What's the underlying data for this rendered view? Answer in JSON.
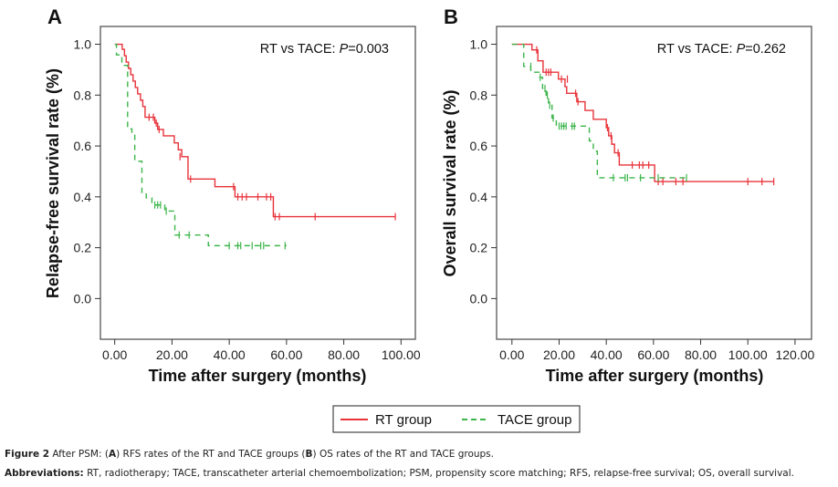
{
  "chart_data": [
    {
      "type": "line",
      "subtype": "kaplan-meier",
      "panel": "A",
      "title": "",
      "annotation": {
        "prefix": "RT vs TACE: ",
        "p_label": "P",
        "p_value": "=0.003"
      },
      "xlabel": "Time after surgery (months)",
      "ylabel": "Relapse-free survival rate (%)",
      "xlim": [
        -5,
        105
      ],
      "ylim": [
        -0.16,
        1.07
      ],
      "xticks": [
        0,
        20,
        40,
        60,
        80,
        100
      ],
      "xtick_labels": [
        "0.00",
        "20.00",
        "40.00",
        "60.00",
        "80.00",
        "100.00"
      ],
      "yticks": [
        0,
        0.2,
        0.4,
        0.6,
        0.8,
        1.0
      ],
      "ytick_labels": [
        "0.0",
        "0.2",
        "0.4",
        "0.6",
        "0.8",
        "1.0"
      ],
      "grid": false,
      "series": [
        {
          "name": "RT group",
          "color": "#e8333a",
          "dash": "solid",
          "steps": [
            [
              0,
              1.0
            ],
            [
              2.6,
              0.98
            ],
            [
              3.4,
              0.955
            ],
            [
              4.0,
              0.93
            ],
            [
              4.8,
              0.905
            ],
            [
              5.6,
              0.88
            ],
            [
              6.4,
              0.855
            ],
            [
              7.2,
              0.83
            ],
            [
              8.0,
              0.805
            ],
            [
              9.0,
              0.78
            ],
            [
              9.8,
              0.755
            ],
            [
              10.6,
              0.713
            ],
            [
              14.0,
              0.69
            ],
            [
              15.0,
              0.665
            ],
            [
              17.0,
              0.64
            ],
            [
              20.8,
              0.612
            ],
            [
              22.2,
              0.585
            ],
            [
              23.4,
              0.558
            ],
            [
              25.6,
              0.47
            ],
            [
              35.0,
              0.44
            ],
            [
              42.0,
              0.4
            ],
            [
              55.4,
              0.322
            ],
            [
              98.0,
              0.322
            ]
          ],
          "censored": [
            [
              12.0,
              0.713
            ],
            [
              13.5,
              0.713
            ],
            [
              14.5,
              0.69
            ],
            [
              15.5,
              0.665
            ],
            [
              22.8,
              0.558
            ],
            [
              26.5,
              0.47
            ],
            [
              41.5,
              0.44
            ],
            [
              43.0,
              0.4
            ],
            [
              44.5,
              0.4
            ],
            [
              46.0,
              0.4
            ],
            [
              50.0,
              0.4
            ],
            [
              53.0,
              0.4
            ],
            [
              54.5,
              0.4
            ],
            [
              56.0,
              0.322
            ],
            [
              57.5,
              0.322
            ],
            [
              70.0,
              0.322
            ],
            [
              98.0,
              0.322
            ]
          ]
        },
        {
          "name": "TACE group",
          "color": "#3cb54a",
          "dash": "dashed",
          "steps": [
            [
              0,
              1.0
            ],
            [
              0.6,
              0.958
            ],
            [
              2.5,
              0.917
            ],
            [
              4.5,
              0.667
            ],
            [
              6.0,
              0.646
            ],
            [
              7.0,
              0.54
            ],
            [
              9.5,
              0.417
            ],
            [
              11.0,
              0.396
            ],
            [
              13.0,
              0.368
            ],
            [
              17.5,
              0.344
            ],
            [
              21.0,
              0.25
            ],
            [
              32.7,
              0.208
            ],
            [
              60.0,
              0.208
            ]
          ],
          "censored": [
            [
              14.0,
              0.368
            ],
            [
              15.0,
              0.368
            ],
            [
              16.0,
              0.368
            ],
            [
              18.0,
              0.344
            ],
            [
              22.5,
              0.25
            ],
            [
              26.0,
              0.25
            ],
            [
              40.0,
              0.208
            ],
            [
              43.0,
              0.208
            ],
            [
              44.0,
              0.208
            ],
            [
              48.0,
              0.208
            ],
            [
              51.0,
              0.208
            ],
            [
              52.0,
              0.208
            ],
            [
              59.5,
              0.208
            ]
          ]
        }
      ]
    },
    {
      "type": "line",
      "subtype": "kaplan-meier",
      "panel": "B",
      "title": "",
      "annotation": {
        "prefix": "RT vs TACE: ",
        "p_label": "P",
        "p_value": "=0.262"
      },
      "xlabel": "Time after surgery (months)",
      "ylabel": "Overall survival rate (%)",
      "xlim": [
        -6.5,
        127
      ],
      "ylim": [
        -0.16,
        1.07
      ],
      "xticks": [
        0,
        20,
        40,
        60,
        80,
        100,
        120
      ],
      "xtick_labels": [
        "0.00",
        "20.00",
        "40.00",
        "60.00",
        "80.00",
        "100.00",
        "120.00"
      ],
      "yticks": [
        0,
        0.2,
        0.4,
        0.6,
        0.8,
        1.0
      ],
      "ytick_labels": [
        "0.0",
        "0.2",
        "0.4",
        "0.6",
        "0.8",
        "1.0"
      ],
      "grid": false,
      "series": [
        {
          "name": "RT group",
          "color": "#e8333a",
          "dash": "solid",
          "steps": [
            [
              0,
              1.0
            ],
            [
              8.5,
              0.978
            ],
            [
              11.0,
              0.935
            ],
            [
              13.2,
              0.89
            ],
            [
              19.7,
              0.863
            ],
            [
              22.5,
              0.833
            ],
            [
              23.2,
              0.807
            ],
            [
              27.5,
              0.774
            ],
            [
              31.0,
              0.74
            ],
            [
              34.5,
              0.705
            ],
            [
              40.0,
              0.672
            ],
            [
              41.0,
              0.64
            ],
            [
              42.3,
              0.607
            ],
            [
              43.5,
              0.573
            ],
            [
              45.5,
              0.525
            ],
            [
              60.5,
              0.46
            ],
            [
              111.0,
              0.46
            ]
          ],
          "censored": [
            [
              10.5,
              0.978
            ],
            [
              14.5,
              0.89
            ],
            [
              15.5,
              0.89
            ],
            [
              16.5,
              0.89
            ],
            [
              21.0,
              0.863
            ],
            [
              23.5,
              0.863
            ],
            [
              27.0,
              0.807
            ],
            [
              28.0,
              0.774
            ],
            [
              40.5,
              0.672
            ],
            [
              42.0,
              0.64
            ],
            [
              45.0,
              0.573
            ],
            [
              51.0,
              0.525
            ],
            [
              54.0,
              0.525
            ],
            [
              55.5,
              0.525
            ],
            [
              58.0,
              0.525
            ],
            [
              62.0,
              0.46
            ],
            [
              64.0,
              0.46
            ],
            [
              69.5,
              0.46
            ],
            [
              72.5,
              0.46
            ],
            [
              100.0,
              0.46
            ],
            [
              106.0,
              0.46
            ],
            [
              111.0,
              0.46
            ]
          ]
        },
        {
          "name": "TACE group",
          "color": "#3cb54a",
          "dash": "dashed",
          "steps": [
            [
              0,
              1.0
            ],
            [
              5.0,
              0.913
            ],
            [
              8.0,
              0.89
            ],
            [
              11.5,
              0.87
            ],
            [
              13.0,
              0.826
            ],
            [
              14.5,
              0.8
            ],
            [
              15.5,
              0.76
            ],
            [
              17.0,
              0.71
            ],
            [
              18.8,
              0.678
            ],
            [
              32.8,
              0.62
            ],
            [
              34.5,
              0.58
            ],
            [
              36.2,
              0.475
            ],
            [
              74.0,
              0.475
            ]
          ],
          "censored": [
            [
              8.0,
              0.913
            ],
            [
              12.0,
              0.87
            ],
            [
              14.0,
              0.826
            ],
            [
              15.0,
              0.8
            ],
            [
              16.0,
              0.76
            ],
            [
              17.5,
              0.71
            ],
            [
              20.0,
              0.678
            ],
            [
              21.0,
              0.678
            ],
            [
              22.0,
              0.678
            ],
            [
              23.0,
              0.678
            ],
            [
              25.5,
              0.678
            ],
            [
              26.5,
              0.678
            ],
            [
              43.0,
              0.475
            ],
            [
              48.0,
              0.475
            ],
            [
              49.0,
              0.475
            ],
            [
              54.5,
              0.475
            ],
            [
              62.0,
              0.475
            ],
            [
              74.0,
              0.475
            ]
          ]
        }
      ]
    }
  ],
  "legend": {
    "placement": "bottom-center",
    "items": [
      {
        "label": "RT group",
        "color": "#e8333a",
        "dash": "solid"
      },
      {
        "label": "TACE group",
        "color": "#3cb54a",
        "dash": "dashed"
      }
    ]
  },
  "caption": {
    "figure_label": "Figure 2",
    "figure_text_parts": [
      " After PSM: (",
      "A",
      ") RFS rates of the RT and TACE groups (",
      "B",
      ") OS rates of the RT and TACE groups."
    ],
    "abbrev_label": "Abbreviations:",
    "abbrev_text": " RT, radiotherapy; TACE, transcatheter arterial chemoembolization; PSM, propensity score matching; RFS, relapse-free survival; OS, overall survival."
  }
}
